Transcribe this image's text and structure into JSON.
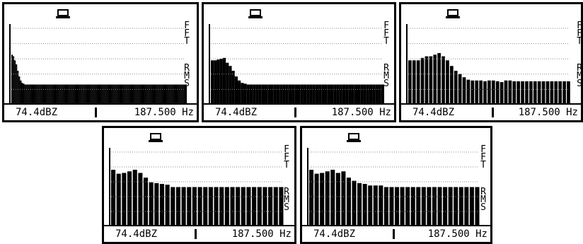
{
  "colors": {
    "foreground": "#000000",
    "background": "#ffffff"
  },
  "screens": [
    {
      "level": "74.4dBZ",
      "frequency": "187.500 Hz",
      "mode": "FFT",
      "detector": "RMS",
      "icon": "battery-icon",
      "spectrum_levels": [
        0.62,
        0.6,
        0.55,
        0.5,
        0.42,
        0.35,
        0.3,
        0.27,
        0.26,
        0.25,
        0.25,
        0.25,
        0.25,
        0.25,
        0.25,
        0.25,
        0.25,
        0.25,
        0.25,
        0.25,
        0.25,
        0.25,
        0.25,
        0.25,
        0.25,
        0.25,
        0.25,
        0.25,
        0.25,
        0.25,
        0.25,
        0.25,
        0.25,
        0.25,
        0.25,
        0.25,
        0.25,
        0.25,
        0.25,
        0.25,
        0.25,
        0.25,
        0.25,
        0.25,
        0.25,
        0.25,
        0.25,
        0.25,
        0.25,
        0.25,
        0.25,
        0.25,
        0.25,
        0.25,
        0.25,
        0.25,
        0.25,
        0.25,
        0.25,
        0.25,
        0.25,
        0.25,
        0.25,
        0.25,
        0.25,
        0.25,
        0.25,
        0.25,
        0.25,
        0.25,
        0.25,
        0.25,
        0.25,
        0.25,
        0.25,
        0.25,
        0.25,
        0.25,
        0.25,
        0.25,
        0.25,
        0.25,
        0.25,
        0.25,
        0.25,
        0.25,
        0.25,
        0.25,
        0.25,
        0.25,
        0.25,
        0.25,
        0.25,
        0.25,
        0.25,
        0.25,
        0.25,
        0.25,
        0.25,
        0.25,
        0.25,
        0.25,
        0.25,
        0.25,
        0.25,
        0.25,
        0.25,
        0.25,
        0.25,
        0.25,
        0.25,
        0.25,
        0.25,
        0.25,
        0.25,
        0.25,
        0.25,
        0.25,
        0.25,
        0.25
      ]
    },
    {
      "level": "74.4dBZ",
      "frequency": "187.500 Hz",
      "mode": "FFT",
      "detector": "RMS",
      "icon": "battery-icon",
      "spectrum_levels": [
        0.55,
        0.55,
        0.56,
        0.57,
        0.58,
        0.52,
        0.48,
        0.42,
        0.35,
        0.3,
        0.27,
        0.26,
        0.25,
        0.25,
        0.25,
        0.25,
        0.25,
        0.25,
        0.25,
        0.25,
        0.25,
        0.25,
        0.25,
        0.25,
        0.25,
        0.25,
        0.25,
        0.25,
        0.25,
        0.25,
        0.25,
        0.25,
        0.25,
        0.25,
        0.25,
        0.25,
        0.25,
        0.25,
        0.25,
        0.25,
        0.25,
        0.25,
        0.25,
        0.25,
        0.25,
        0.25,
        0.25,
        0.25,
        0.25,
        0.25,
        0.25,
        0.25,
        0.25,
        0.25,
        0.25,
        0.25,
        0.25,
        0.25
      ]
    },
    {
      "level": "74.4dBZ",
      "frequency": "187.500 Hz",
      "mode": "FFT",
      "detector": "RMS",
      "icon": "battery-icon",
      "spectrum_levels": [
        0.55,
        0.55,
        0.55,
        0.58,
        0.6,
        0.6,
        0.62,
        0.64,
        0.6,
        0.55,
        0.48,
        0.42,
        0.38,
        0.34,
        0.31,
        0.3,
        0.3,
        0.3,
        0.29,
        0.3,
        0.3,
        0.29,
        0.28,
        0.3,
        0.3,
        0.29,
        0.29,
        0.29,
        0.29,
        0.29,
        0.29,
        0.29,
        0.29,
        0.29,
        0.29,
        0.29,
        0.29,
        0.29,
        0.29
      ]
    },
    {
      "level": "74.4dBZ",
      "frequency": "187.500 Hz",
      "mode": "FFT",
      "detector": "RMS",
      "icon": "battery-icon",
      "spectrum_levels": [
        0.72,
        0.67,
        0.68,
        0.7,
        0.72,
        0.68,
        0.62,
        0.56,
        0.55,
        0.54,
        0.53,
        0.5,
        0.5,
        0.5,
        0.5,
        0.5,
        0.5,
        0.5,
        0.5,
        0.5,
        0.5,
        0.5,
        0.5,
        0.5,
        0.5,
        0.5,
        0.5,
        0.5,
        0.5,
        0.5,
        0.5,
        0.5
      ]
    },
    {
      "level": "74.4dBZ",
      "frequency": "187.500 Hz",
      "mode": "FFT",
      "detector": "RMS",
      "icon": "battery-icon",
      "spectrum_levels": [
        0.72,
        0.67,
        0.68,
        0.7,
        0.72,
        0.68,
        0.7,
        0.62,
        0.58,
        0.55,
        0.54,
        0.52,
        0.52,
        0.52,
        0.5,
        0.5,
        0.5,
        0.5,
        0.5,
        0.5,
        0.5,
        0.5,
        0.5,
        0.5,
        0.5,
        0.5,
        0.5,
        0.5,
        0.5,
        0.5,
        0.5,
        0.5
      ]
    }
  ]
}
